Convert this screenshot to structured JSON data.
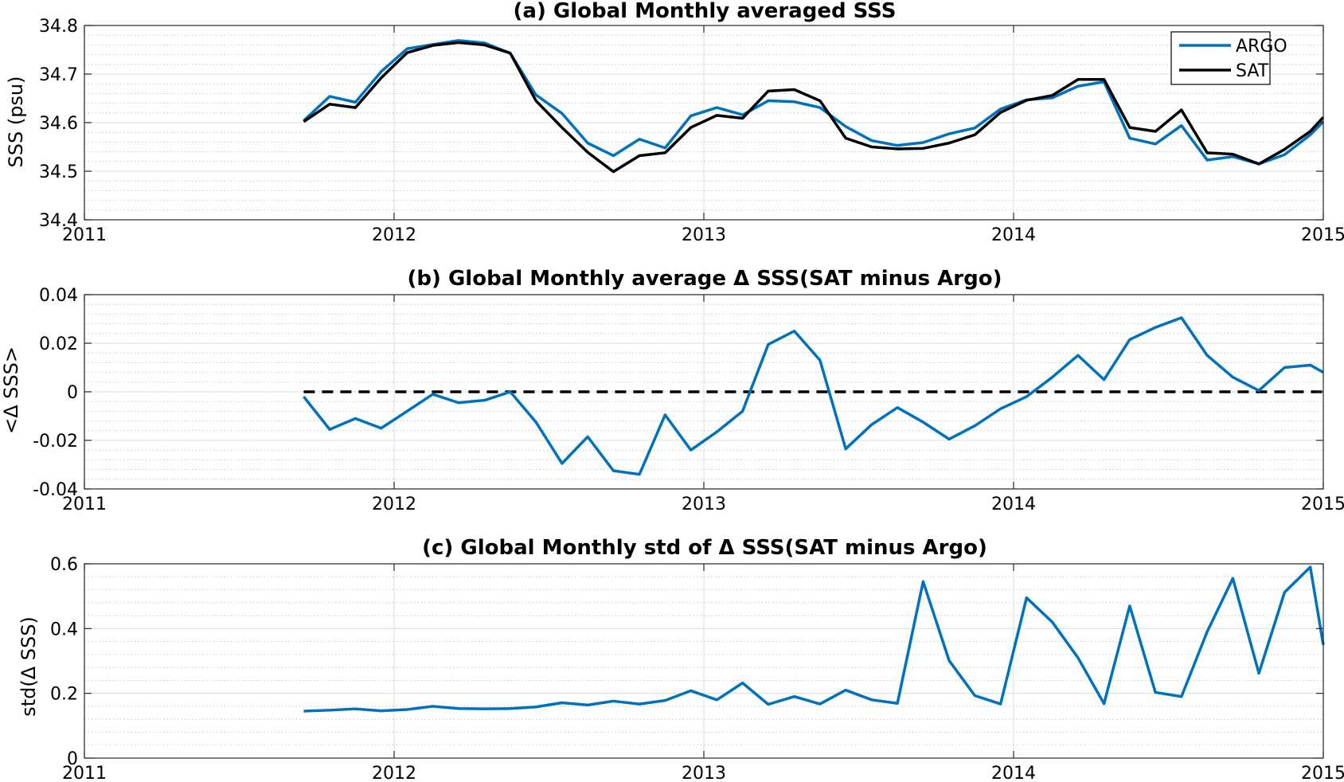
{
  "chart_data": [
    {
      "type": "line",
      "title": "(a) Global Monthly averaged SSS",
      "xlabel": "",
      "ylabel": "SSS (psu)",
      "xlim": [
        2011,
        2015
      ],
      "ylim": [
        34.4,
        34.8
      ],
      "xticks": [
        2011,
        2012,
        2013,
        2014,
        2015
      ],
      "xtick_labels": [
        "2011",
        "2012",
        "2013",
        "2014",
        "2015"
      ],
      "yticks": [
        34.4,
        34.5,
        34.6,
        34.7,
        34.8
      ],
      "ytick_labels": [
        "34.4",
        "34.5",
        "34.6",
        "34.7",
        "34.8"
      ],
      "grid": true,
      "legend": "top-right",
      "x": [
        2011.708,
        2011.792,
        2011.875,
        2011.958,
        2012.042,
        2012.125,
        2012.208,
        2012.292,
        2012.375,
        2012.458,
        2012.542,
        2012.625,
        2012.708,
        2012.792,
        2012.875,
        2012.958,
        2013.042,
        2013.125,
        2013.208,
        2013.292,
        2013.375,
        2013.458,
        2013.542,
        2013.625,
        2013.708,
        2013.792,
        2013.875,
        2013.958,
        2014.042,
        2014.125,
        2014.208,
        2014.292,
        2014.375,
        2014.458,
        2014.542,
        2014.625,
        2014.708,
        2014.792,
        2014.875,
        2014.958,
        2015.0
      ],
      "series": [
        {
          "name": "ARGO",
          "color": "#0072bd",
          "values": [
            34.604,
            34.654,
            34.642,
            34.705,
            34.752,
            34.761,
            34.769,
            34.764,
            34.743,
            34.657,
            34.619,
            34.558,
            34.532,
            34.566,
            34.548,
            34.614,
            34.631,
            34.616,
            34.645,
            34.643,
            34.631,
            34.592,
            34.563,
            34.553,
            34.559,
            34.577,
            34.589,
            34.628,
            34.647,
            34.651,
            34.675,
            34.684,
            34.568,
            34.556,
            34.594,
            34.523,
            34.53,
            34.515,
            34.534,
            34.575,
            34.602
          ]
        },
        {
          "name": "SAT",
          "color": "#000000",
          "values": [
            34.602,
            34.638,
            34.631,
            34.692,
            34.744,
            34.759,
            34.765,
            34.76,
            34.743,
            34.645,
            34.59,
            34.539,
            34.499,
            34.532,
            34.538,
            34.59,
            34.615,
            34.609,
            34.665,
            34.668,
            34.645,
            34.568,
            34.55,
            34.546,
            34.547,
            34.558,
            34.575,
            34.621,
            34.646,
            34.656,
            34.689,
            34.689,
            34.59,
            34.582,
            34.626,
            34.538,
            34.535,
            34.515,
            34.545,
            34.582,
            34.611
          ]
        }
      ]
    },
    {
      "type": "line",
      "title": "(b) Global Monthly average Δ SSS(SAT minus Argo)",
      "xlabel": "",
      "ylabel": "<Δ SSS>",
      "xlim": [
        2011,
        2015
      ],
      "ylim": [
        -0.04,
        0.04
      ],
      "xticks": [
        2011,
        2012,
        2013,
        2014,
        2015
      ],
      "xtick_labels": [
        "2011",
        "2012",
        "2013",
        "2014",
        "2015"
      ],
      "yticks": [
        -0.04,
        -0.02,
        0,
        0.02,
        0.04
      ],
      "ytick_labels": [
        "-0.04",
        "-0.02",
        "0",
        "0.02",
        "0.04"
      ],
      "grid": true,
      "reference_line": {
        "y": 0,
        "style": "dashed",
        "color": "#000000",
        "x_from": 2011.708,
        "x_to": 2015.0
      },
      "x": [
        2011.708,
        2011.792,
        2011.875,
        2011.958,
        2012.042,
        2012.125,
        2012.208,
        2012.292,
        2012.375,
        2012.458,
        2012.542,
        2012.625,
        2012.708,
        2012.792,
        2012.875,
        2012.958,
        2013.042,
        2013.125,
        2013.208,
        2013.292,
        2013.375,
        2013.458,
        2013.542,
        2013.625,
        2013.708,
        2013.792,
        2013.875,
        2013.958,
        2014.042,
        2014.125,
        2014.208,
        2014.292,
        2014.375,
        2014.458,
        2014.542,
        2014.625,
        2014.708,
        2014.792,
        2014.875,
        2014.958,
        2015.0
      ],
      "series": [
        {
          "name": "",
          "color": "#0072bd",
          "values": [
            -0.002,
            -0.0155,
            -0.011,
            -0.015,
            -0.008,
            -0.001,
            -0.0045,
            -0.0035,
            0.0,
            -0.0125,
            -0.0295,
            -0.0185,
            -0.0325,
            -0.034,
            -0.0095,
            -0.024,
            -0.0165,
            -0.008,
            0.0195,
            0.025,
            0.013,
            -0.0235,
            -0.0135,
            -0.0065,
            -0.0125,
            -0.0195,
            -0.014,
            -0.007,
            -0.002,
            0.006,
            0.015,
            0.005,
            0.0215,
            0.0265,
            0.0305,
            0.015,
            0.006,
            0.0005,
            0.01,
            0.011,
            0.008
          ]
        }
      ]
    },
    {
      "type": "line",
      "title": "(c) Global Monthly std of Δ SSS(SAT minus Argo)",
      "xlabel": "",
      "ylabel": "std(Δ SSS)",
      "xlim": [
        2011,
        2015
      ],
      "ylim": [
        0,
        0.6
      ],
      "xticks": [
        2011,
        2012,
        2013,
        2014,
        2015
      ],
      "xtick_labels": [
        "2011",
        "2012",
        "2013",
        "2014",
        "2015"
      ],
      "yticks": [
        0,
        0.2,
        0.4,
        0.6
      ],
      "ytick_labels": [
        "0",
        "0.2",
        "0.4",
        "0.6"
      ],
      "grid": true,
      "x": [
        2011.708,
        2011.792,
        2011.875,
        2011.958,
        2012.042,
        2012.125,
        2012.208,
        2012.292,
        2012.375,
        2012.458,
        2012.542,
        2012.625,
        2012.708,
        2012.792,
        2012.875,
        2012.958,
        2013.042,
        2013.125,
        2013.208,
        2013.292,
        2013.375,
        2013.458,
        2013.542,
        2013.625,
        2013.708,
        2013.792,
        2013.875,
        2013.958,
        2014.042,
        2014.125,
        2014.208,
        2014.292,
        2014.375,
        2014.458,
        2014.542,
        2014.625,
        2014.708,
        2014.792,
        2014.875,
        2014.958,
        2015.0
      ],
      "series": [
        {
          "name": "",
          "color": "#0072bd",
          "values": [
            0.145,
            0.148,
            0.152,
            0.146,
            0.15,
            0.16,
            0.153,
            0.152,
            0.153,
            0.158,
            0.171,
            0.164,
            0.176,
            0.167,
            0.178,
            0.208,
            0.18,
            0.232,
            0.166,
            0.19,
            0.167,
            0.21,
            0.18,
            0.169,
            0.545,
            0.301,
            0.193,
            0.167,
            0.495,
            0.42,
            0.31,
            0.168,
            0.47,
            0.203,
            0.19,
            0.39,
            0.555,
            0.262,
            0.512,
            0.59,
            0.35
          ]
        }
      ]
    }
  ]
}
